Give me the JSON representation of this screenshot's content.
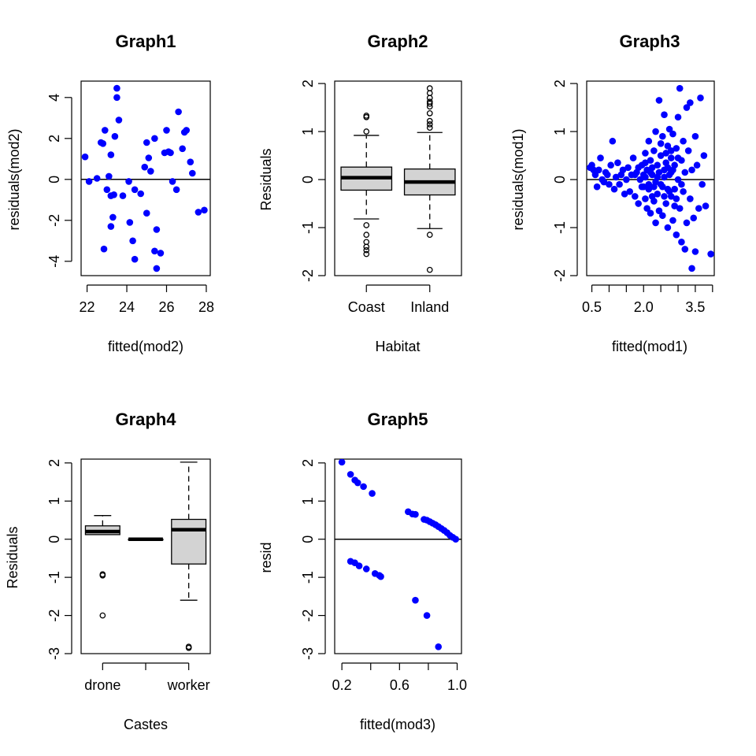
{
  "chart_data": [
    {
      "id": "g1",
      "type": "scatter",
      "title": "Graph1",
      "xlabel": "fitted(mod2)",
      "ylabel": "residuals(mod2)",
      "xlim": [
        21.7,
        28.2
      ],
      "ylim": [
        -4.7,
        4.8
      ],
      "xticks": [
        22,
        24,
        26,
        28
      ],
      "yticks": [
        -4,
        -2,
        0,
        2,
        4
      ],
      "hline": 0,
      "point_color": "#0000ff",
      "points": [
        [
          21.9,
          1.1
        ],
        [
          22.1,
          -0.1
        ],
        [
          22.5,
          0.05
        ],
        [
          22.7,
          1.8
        ],
        [
          22.8,
          1.75
        ],
        [
          22.85,
          -3.4
        ],
        [
          22.9,
          2.4
        ],
        [
          23.0,
          -0.5
        ],
        [
          23.1,
          0.15
        ],
        [
          23.2,
          -0.8
        ],
        [
          23.2,
          -2.3
        ],
        [
          23.2,
          1.2
        ],
        [
          23.3,
          -1.85
        ],
        [
          23.35,
          -0.75
        ],
        [
          23.4,
          2.1
        ],
        [
          23.5,
          4.45
        ],
        [
          23.5,
          4.0
        ],
        [
          23.6,
          2.9
        ],
        [
          23.8,
          -0.8
        ],
        [
          24.1,
          -0.1
        ],
        [
          24.15,
          -2.1
        ],
        [
          24.3,
          -3.0
        ],
        [
          24.4,
          -0.5
        ],
        [
          24.4,
          -3.9
        ],
        [
          24.7,
          -0.7
        ],
        [
          24.9,
          0.6
        ],
        [
          25.0,
          -1.65
        ],
        [
          25.0,
          1.8
        ],
        [
          25.1,
          1.05
        ],
        [
          25.2,
          0.4
        ],
        [
          25.4,
          2.0
        ],
        [
          25.4,
          -3.5
        ],
        [
          25.5,
          -2.45
        ],
        [
          25.5,
          -4.35
        ],
        [
          25.7,
          -3.6
        ],
        [
          25.9,
          1.3
        ],
        [
          26.0,
          2.4
        ],
        [
          26.1,
          1.35
        ],
        [
          26.2,
          1.3
        ],
        [
          26.3,
          -0.1
        ],
        [
          26.5,
          -0.5
        ],
        [
          26.6,
          3.3
        ],
        [
          26.8,
          1.5
        ],
        [
          26.9,
          2.3
        ],
        [
          27.0,
          2.4
        ],
        [
          27.2,
          0.85
        ],
        [
          27.3,
          0.3
        ],
        [
          27.6,
          -1.6
        ],
        [
          27.9,
          -1.5
        ]
      ]
    },
    {
      "id": "g2",
      "type": "boxplot",
      "title": "Graph2",
      "xlabel": "Habitat",
      "ylabel": "Residuals",
      "ylim": [
        -2.0,
        2.05
      ],
      "yticks": [
        -2,
        -1,
        0,
        1,
        2
      ],
      "categories": [
        "Coast",
        "Inland"
      ],
      "boxes": [
        {
          "whisker_low": -0.82,
          "q1": -0.22,
          "median": 0.04,
          "q3": 0.26,
          "whisker_high": 0.92,
          "outliers": [
            1.0,
            1.3,
            1.33,
            -0.95,
            -1.15,
            -1.3,
            -1.4,
            -1.47,
            -1.55
          ]
        },
        {
          "whisker_low": -1.02,
          "q1": -0.32,
          "median": -0.05,
          "q3": 0.22,
          "whisker_high": 0.98,
          "outliers": [
            1.08,
            1.15,
            1.22,
            1.38,
            1.52,
            1.58,
            1.62,
            1.7,
            1.8,
            1.9,
            -1.15,
            -1.88
          ]
        }
      ],
      "box_fill": "#d3d3d3"
    },
    {
      "id": "g3",
      "type": "scatter",
      "title": "Graph3",
      "xlabel": "fitted(mod1)",
      "ylabel": "residuals(mod1)",
      "xlim": [
        0.35,
        4.05
      ],
      "ylim": [
        -2.0,
        2.05
      ],
      "xticks": [
        0.5,
        1.0,
        1.5,
        2.0,
        2.5,
        3.0,
        3.5,
        4.0
      ],
      "xtick_labels": [
        "0.5",
        "",
        "",
        "2.0",
        "",
        "",
        "3.5",
        ""
      ],
      "yticks": [
        -2,
        -1,
        0,
        1,
        2
      ],
      "hline": 0,
      "point_color": "#0000ff",
      "points": [
        [
          0.45,
          0.25
        ],
        [
          0.5,
          0.3
        ],
        [
          0.55,
          0.2
        ],
        [
          0.6,
          0.1
        ],
        [
          0.65,
          -0.15
        ],
        [
          0.7,
          0.2
        ],
        [
          0.75,
          0.45
        ],
        [
          0.8,
          0.0
        ],
        [
          0.85,
          -0.05
        ],
        [
          0.9,
          0.15
        ],
        [
          0.95,
          0.1
        ],
        [
          1.0,
          -0.1
        ],
        [
          1.05,
          0.3
        ],
        [
          1.1,
          0.8
        ],
        [
          1.15,
          -0.2
        ],
        [
          1.2,
          0.05
        ],
        [
          1.25,
          0.35
        ],
        [
          1.3,
          -0.1
        ],
        [
          1.35,
          0.1
        ],
        [
          1.4,
          0.2
        ],
        [
          1.45,
          -0.3
        ],
        [
          1.5,
          0.0
        ],
        [
          1.55,
          0.25
        ],
        [
          1.6,
          -0.25
        ],
        [
          1.65,
          0.1
        ],
        [
          1.7,
          0.45
        ],
        [
          1.75,
          -0.35
        ],
        [
          1.8,
          0.15
        ],
        [
          1.85,
          -0.5
        ],
        [
          1.9,
          0.0
        ],
        [
          1.95,
          0.3
        ],
        [
          2.0,
          -0.15
        ],
        [
          2.05,
          0.55
        ],
        [
          2.05,
          -0.4
        ],
        [
          2.1,
          0.2
        ],
        [
          2.1,
          -0.6
        ],
        [
          2.15,
          0.8
        ],
        [
          2.15,
          -0.2
        ],
        [
          2.2,
          0.4
        ],
        [
          2.2,
          -0.7
        ],
        [
          2.25,
          0.1
        ],
        [
          2.3,
          0.6
        ],
        [
          2.3,
          -0.45
        ],
        [
          2.35,
          1.0
        ],
        [
          2.35,
          -0.9
        ],
        [
          2.4,
          0.3
        ],
        [
          2.4,
          -0.3
        ],
        [
          2.45,
          1.65
        ],
        [
          2.45,
          -0.65
        ],
        [
          2.5,
          0.5
        ],
        [
          2.5,
          -0.1
        ],
        [
          2.55,
          0.9
        ],
        [
          2.55,
          -0.75
        ],
        [
          2.6,
          0.2
        ],
        [
          2.6,
          1.35
        ],
        [
          2.65,
          -0.5
        ],
        [
          2.7,
          0.7
        ],
        [
          2.7,
          -1.0
        ],
        [
          2.75,
          0.1
        ],
        [
          2.75,
          1.05
        ],
        [
          2.8,
          -0.35
        ],
        [
          2.8,
          0.45
        ],
        [
          2.85,
          0.95
        ],
        [
          2.85,
          -0.85
        ],
        [
          2.9,
          0.3
        ],
        [
          2.9,
          -0.2
        ],
        [
          2.95,
          0.65
        ],
        [
          2.95,
          -1.15
        ],
        [
          3.0,
          1.3
        ],
        [
          3.0,
          0.0
        ],
        [
          3.05,
          1.9
        ],
        [
          3.05,
          -0.6
        ],
        [
          3.1,
          0.4
        ],
        [
          3.1,
          -1.3
        ],
        [
          3.15,
          0.8
        ],
        [
          3.15,
          -0.25
        ],
        [
          3.2,
          -1.45
        ],
        [
          3.2,
          0.15
        ],
        [
          3.25,
          1.5
        ],
        [
          3.25,
          -0.9
        ],
        [
          3.3,
          0.6
        ],
        [
          3.35,
          -0.4
        ],
        [
          3.35,
          1.6
        ],
        [
          3.4,
          0.2
        ],
        [
          3.4,
          -1.85
        ],
        [
          3.45,
          -0.8
        ],
        [
          3.5,
          0.9
        ],
        [
          3.5,
          -1.5
        ],
        [
          3.55,
          0.3
        ],
        [
          3.6,
          -0.6
        ],
        [
          3.65,
          1.7
        ],
        [
          3.7,
          -0.1
        ],
        [
          3.75,
          0.5
        ],
        [
          3.8,
          -0.55
        ],
        [
          3.95,
          -1.55
        ],
        [
          2.05,
          0.05
        ],
        [
          2.15,
          -0.1
        ],
        [
          2.25,
          0.25
        ],
        [
          2.35,
          -0.05
        ],
        [
          2.45,
          0.15
        ],
        [
          2.55,
          -0.15
        ],
        [
          2.65,
          0.35
        ],
        [
          2.75,
          -0.25
        ],
        [
          2.85,
          0.2
        ],
        [
          2.95,
          -0.4
        ],
        [
          1.95,
          -0.15
        ],
        [
          2.05,
          0.35
        ],
        [
          2.25,
          -0.35
        ],
        [
          2.5,
          0.75
        ],
        [
          2.6,
          -0.35
        ],
        [
          2.7,
          0.25
        ],
        [
          2.8,
          0.6
        ],
        [
          2.9,
          -0.55
        ],
        [
          3.0,
          0.45
        ],
        [
          3.1,
          -0.1
        ],
        [
          2.4,
          0.05
        ],
        [
          2.3,
          -0.15
        ],
        [
          2.2,
          0.15
        ],
        [
          2.6,
          0.05
        ],
        [
          2.7,
          -0.2
        ],
        [
          2.8,
          0.15
        ],
        [
          1.85,
          0.25
        ],
        [
          1.75,
          0.1
        ],
        [
          2.0,
          0.1
        ],
        [
          2.65,
          0.55
        ]
      ]
    },
    {
      "id": "g4",
      "type": "boxplot",
      "title": "Graph4",
      "xlabel": "Castes",
      "ylabel": "Residuals",
      "ylim": [
        -3.0,
        2.1
      ],
      "yticks": [
        -3,
        -2,
        -1,
        0,
        1,
        2
      ],
      "categories": [
        "drone",
        "",
        "worker"
      ],
      "boxes": [
        {
          "whisker_low": 0.12,
          "q1": 0.12,
          "median": 0.2,
          "q3": 0.35,
          "whisker_high": 0.62,
          "outliers": [
            -0.92,
            -0.95,
            -2.0
          ]
        },
        {
          "whisker_low": 0.0,
          "q1": 0.0,
          "median": 0.0,
          "q3": 0.0,
          "whisker_high": 0.0,
          "outliers": []
        },
        {
          "whisker_low": -1.6,
          "q1": -0.65,
          "median": 0.25,
          "q3": 0.52,
          "whisker_high": 2.02,
          "outliers": [
            -2.82,
            -2.85
          ]
        }
      ],
      "box_fill": "#d3d3d3"
    },
    {
      "id": "g5",
      "type": "scatter",
      "title": "Graph5",
      "xlabel": "fitted(mod3)",
      "ylabel": "resid",
      "xlim": [
        0.15,
        1.03
      ],
      "ylim": [
        -3.0,
        2.1
      ],
      "xticks": [
        0.2,
        0.4,
        0.6,
        0.8,
        1.0
      ],
      "xtick_labels": [
        "0.2",
        "",
        "0.6",
        "",
        "1.0"
      ],
      "yticks": [
        -3,
        -2,
        -1,
        0,
        1,
        2
      ],
      "hline": 0,
      "point_color": "#0000ff",
      "points": [
        [
          0.2,
          2.02
        ],
        [
          0.26,
          1.7
        ],
        [
          0.29,
          1.55
        ],
        [
          0.31,
          1.48
        ],
        [
          0.35,
          1.38
        ],
        [
          0.41,
          1.2
        ],
        [
          0.26,
          -0.58
        ],
        [
          0.29,
          -0.62
        ],
        [
          0.32,
          -0.7
        ],
        [
          0.37,
          -0.78
        ],
        [
          0.43,
          -0.9
        ],
        [
          0.46,
          -0.95
        ],
        [
          0.47,
          -0.98
        ],
        [
          0.66,
          0.72
        ],
        [
          0.69,
          0.66
        ],
        [
          0.71,
          0.65
        ],
        [
          0.77,
          0.52
        ],
        [
          0.79,
          0.5
        ],
        [
          0.81,
          0.46
        ],
        [
          0.83,
          0.42
        ],
        [
          0.85,
          0.38
        ],
        [
          0.87,
          0.33
        ],
        [
          0.89,
          0.28
        ],
        [
          0.91,
          0.23
        ],
        [
          0.93,
          0.17
        ],
        [
          0.95,
          0.1
        ],
        [
          0.97,
          0.05
        ],
        [
          0.99,
          0.0
        ],
        [
          0.71,
          -1.6
        ],
        [
          0.79,
          -2.0
        ],
        [
          0.87,
          -2.82
        ]
      ]
    }
  ]
}
